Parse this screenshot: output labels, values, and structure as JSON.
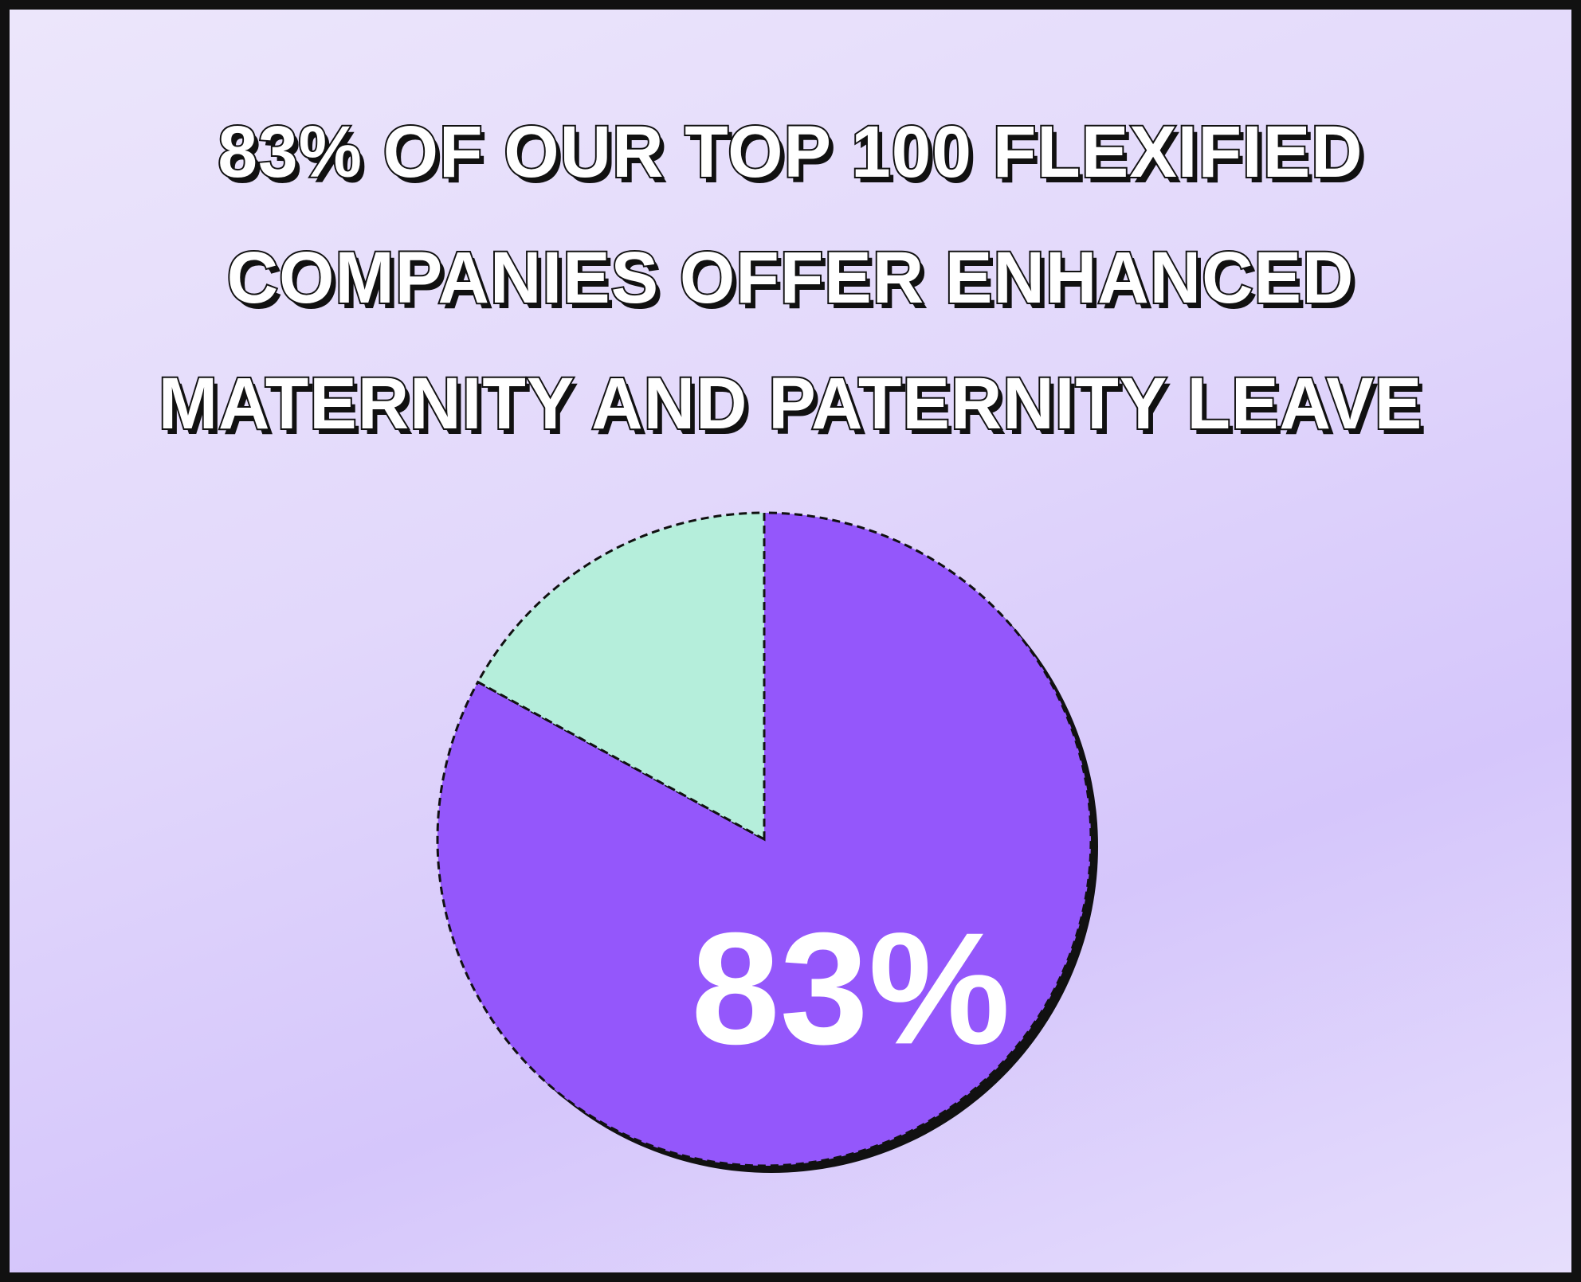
{
  "chart_data": {
    "type": "pie",
    "title": "83% OF OUR TOP 100 FLEXIFIED COMPANIES OFFER ENHANCED MATERNITY AND PATERNITY LEAVE",
    "categories": [
      null,
      null
    ],
    "values": [
      83,
      17
    ],
    "value_labels": [
      "83%",
      null
    ],
    "colors": [
      "#9457fb",
      "#b5eedb"
    ]
  }
}
